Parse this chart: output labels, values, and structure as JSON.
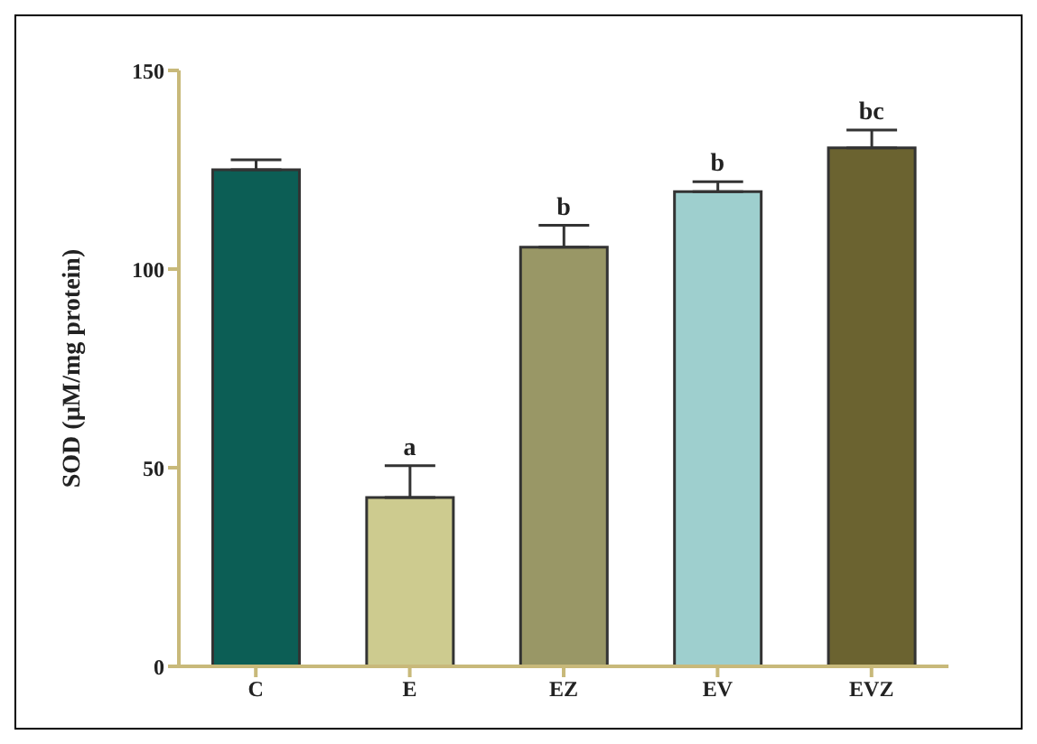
{
  "chart_data": {
    "type": "bar",
    "ylabel": "SOD (µM/mg protein)",
    "categories": [
      "C",
      "E",
      "EZ",
      "EV",
      "EVZ"
    ],
    "values": [
      125,
      42.5,
      105.5,
      119.5,
      130.5
    ],
    "colors": [
      "#0c5e55",
      "#cdcb8f",
      "#999766",
      "#9ecfce",
      "#6b6330"
    ],
    "errors": [
      [
        125,
        127.5
      ],
      [
        42.5,
        50.5
      ],
      [
        105.5,
        111
      ],
      [
        119.5,
        122
      ],
      [
        130.5,
        135
      ]
    ],
    "ylim": [
      0,
      150
    ],
    "yticks": [
      0,
      50,
      100,
      150
    ],
    "grid": false,
    "legend": false,
    "annotations": [
      {
        "text": "a",
        "x": "E",
        "y": 50.5
      },
      {
        "text": "b",
        "x": "EZ",
        "y": 111
      },
      {
        "text": "b",
        "x": "EV",
        "y": 122
      },
      {
        "text": "bc",
        "x": "EVZ",
        "y": 135
      }
    ]
  }
}
